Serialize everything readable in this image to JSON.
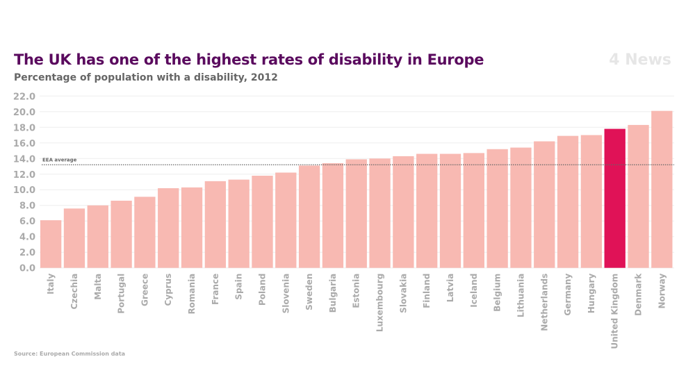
{
  "header": {
    "title": "The UK has one of the highest rates of disability in Europe",
    "subtitle": "Percentage of population with a disability, 2012",
    "logo_text": "4 News"
  },
  "footer": {
    "source": "Source: European Commission data"
  },
  "chart_data": {
    "type": "bar",
    "title": "The UK has one of the highest rates of disability in Europe",
    "subtitle": "Percentage of population with a disability, 2012",
    "categories": [
      "Italy",
      "Czechia",
      "Malta",
      "Portugal",
      "Greece",
      "Cyprus",
      "Romania",
      "France",
      "Spain",
      "Poland",
      "Slovenia",
      "Sweden",
      "Bulgaria",
      "Estonia",
      "Luxembourg",
      "Slovakia",
      "Finland",
      "Latvia",
      "Iceland",
      "Belgium",
      "Lithuania",
      "Netherlands",
      "Germany",
      "Hungary",
      "United Kingdom",
      "Denmark",
      "Norway"
    ],
    "values": [
      6.1,
      7.6,
      8.0,
      8.6,
      9.1,
      10.2,
      10.3,
      11.1,
      11.3,
      11.8,
      12.2,
      13.1,
      13.4,
      13.9,
      14.0,
      14.3,
      14.6,
      14.6,
      14.7,
      15.2,
      15.4,
      16.2,
      16.9,
      17.0,
      17.8,
      18.3,
      20.1
    ],
    "highlight": "United Kingdom",
    "colors": {
      "bar": "#f8b9b2",
      "highlight": "#e01257",
      "title": "#5a0a5e"
    },
    "ylim": [
      0,
      22
    ],
    "yticks": [
      "0.0",
      "2.0",
      "4.0",
      "6.0",
      "8.0",
      "10.0",
      "12.0",
      "14.0",
      "16.0",
      "18.0",
      "20.0",
      "22.0"
    ],
    "reference_line": {
      "label": "EEA average",
      "value": 13.2
    },
    "grid": true,
    "xlabel": "",
    "ylabel": ""
  }
}
